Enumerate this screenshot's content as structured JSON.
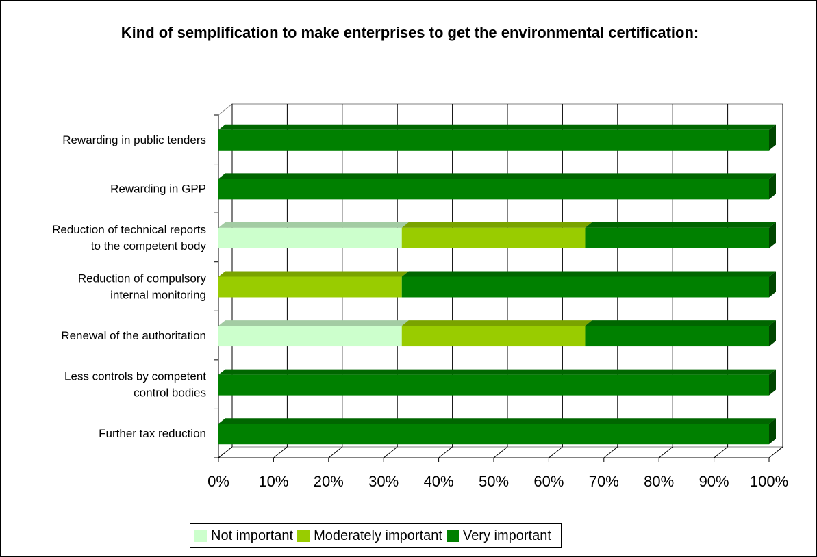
{
  "chart_data": {
    "type": "bar",
    "orientation": "horizontal",
    "stacked": "percent",
    "title": "Kind of semplification to make enterprises to get the environmental certification:",
    "categories": [
      "Rewarding in public tenders",
      "Rewarding in GPP",
      "Reduction of technical reports\nto the competent body",
      "Reduction of compulsory\ninternal monitoring",
      "Renewal of the authoritation",
      "Less controls by competent\ncontrol bodies",
      "Further tax reduction"
    ],
    "series": [
      {
        "name": "Not important",
        "color": "#ccffcc",
        "values": [
          0,
          0,
          33.3,
          0,
          33.3,
          0,
          0
        ]
      },
      {
        "name": "Moderately important",
        "color": "#99cc00",
        "values": [
          0,
          0,
          33.3,
          33.3,
          33.3,
          0,
          0
        ]
      },
      {
        "name": "Very important",
        "color": "#008000",
        "values": [
          100,
          100,
          33.4,
          66.7,
          33.4,
          100,
          100
        ]
      }
    ],
    "xticks": [
      "0%",
      "10%",
      "20%",
      "30%",
      "40%",
      "50%",
      "60%",
      "70%",
      "80%",
      "90%",
      "100%"
    ],
    "xlim": [
      0,
      100
    ],
    "grid": true,
    "legend_position": "bottom"
  }
}
